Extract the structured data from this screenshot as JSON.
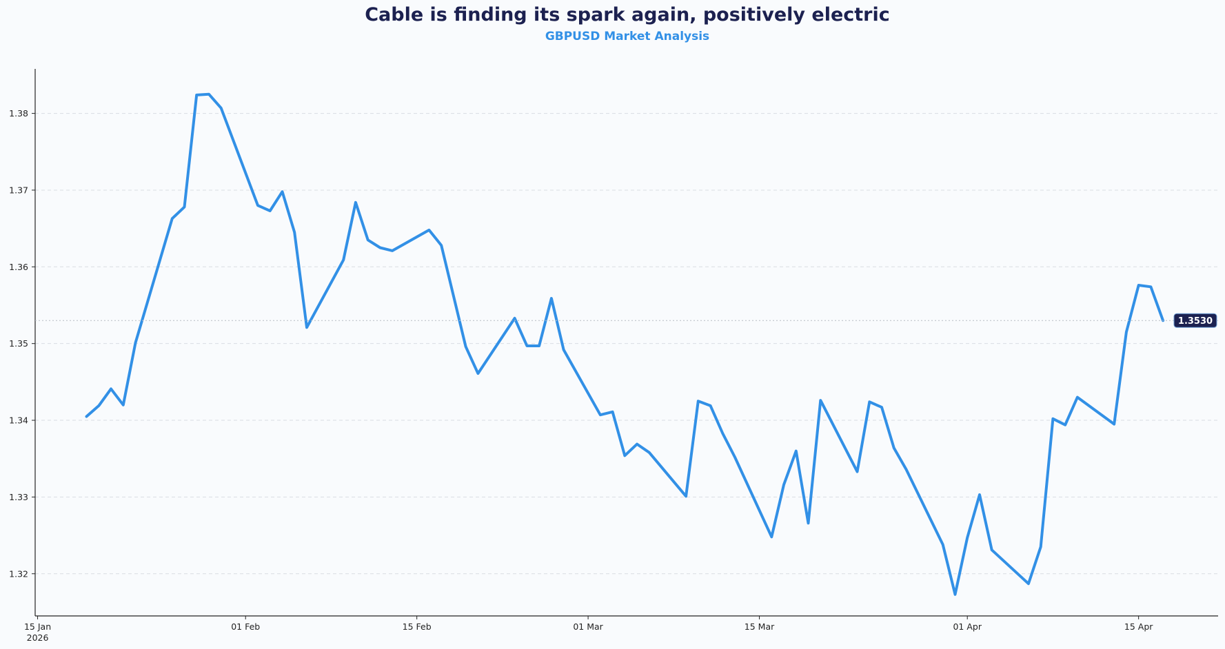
{
  "chart_data": {
    "type": "line",
    "title": "Cable is finding its spark again, positively electric",
    "subtitle": "GBPUSD Market Analysis",
    "xlabel": "",
    "ylabel": "",
    "ylim": [
      1.3145,
      1.3858
    ],
    "grid": "horizontal dashed",
    "last_value_label": "1.3530",
    "last_value": 1.353,
    "y_ticks": [
      {
        "value": 1.32,
        "label": "1.32"
      },
      {
        "value": 1.33,
        "label": "1.33"
      },
      {
        "value": 1.34,
        "label": "1.34"
      },
      {
        "value": 1.35,
        "label": "1.35"
      },
      {
        "value": 1.36,
        "label": "1.36"
      },
      {
        "value": 1.37,
        "label": "1.37"
      },
      {
        "value": 1.38,
        "label": "1.38"
      }
    ],
    "x_ticks": [
      {
        "day": 0,
        "label": "15 Jan",
        "sublabel": "2026"
      },
      {
        "day": 17,
        "label": "01 Feb",
        "sublabel": ""
      },
      {
        "day": 31,
        "label": "15 Feb",
        "sublabel": ""
      },
      {
        "day": 45,
        "label": "01 Mar",
        "sublabel": ""
      },
      {
        "day": 59,
        "label": "15 Mar",
        "sublabel": ""
      },
      {
        "day": 76,
        "label": "01 Apr",
        "sublabel": ""
      },
      {
        "day": 90,
        "label": "15 Apr",
        "sublabel": ""
      }
    ],
    "xlim_days": [
      -0.2,
      96.5
    ],
    "x_axis_note": "days since 15 Jan 2026",
    "series": [
      {
        "name": "GBPUSD",
        "color": "#3290e6",
        "x_days": [
          4,
          5,
          6,
          7,
          8,
          11,
          12,
          13,
          14,
          15,
          18,
          19,
          20,
          21,
          22,
          25,
          26,
          27,
          28,
          29,
          32,
          33,
          34,
          35,
          36,
          39,
          40,
          41,
          42,
          43,
          46,
          47,
          48,
          49,
          50,
          53,
          54,
          55,
          56,
          57,
          60,
          61,
          62,
          63,
          64,
          67,
          68,
          69,
          70,
          71,
          74,
          75,
          76,
          77,
          78,
          81,
          82,
          83,
          84,
          85,
          88,
          89,
          90,
          91,
          92
        ],
        "values": [
          1.3405,
          1.3419,
          1.3441,
          1.342,
          1.3501,
          1.3663,
          1.3678,
          1.3824,
          1.3825,
          1.3807,
          1.368,
          1.3673,
          1.3698,
          1.3645,
          1.3521,
          1.3609,
          1.3684,
          1.3635,
          1.3625,
          1.3621,
          1.3648,
          1.3628,
          1.3562,
          1.3496,
          1.3461,
          1.3533,
          1.3497,
          1.3497,
          1.3559,
          1.3492,
          1.3407,
          1.3411,
          1.3354,
          1.3369,
          1.3358,
          1.3301,
          1.3425,
          1.3419,
          1.3383,
          1.3352,
          1.3248,
          1.3316,
          1.336,
          1.3266,
          1.3426,
          1.3333,
          1.3424,
          1.3417,
          1.3364,
          1.3336,
          1.3238,
          1.3173,
          1.3247,
          1.3303,
          1.3231,
          1.3187,
          1.3235,
          1.3402,
          1.3394,
          1.343,
          1.3395,
          1.3515,
          1.3576,
          1.3574,
          1.353
        ]
      }
    ]
  },
  "colors": {
    "line": "#3290e6",
    "title": "#1c2150",
    "subtitle": "#3290e6",
    "badge_bg": "#1c2150",
    "grid": "#d9dde2",
    "axis": "#222222"
  }
}
